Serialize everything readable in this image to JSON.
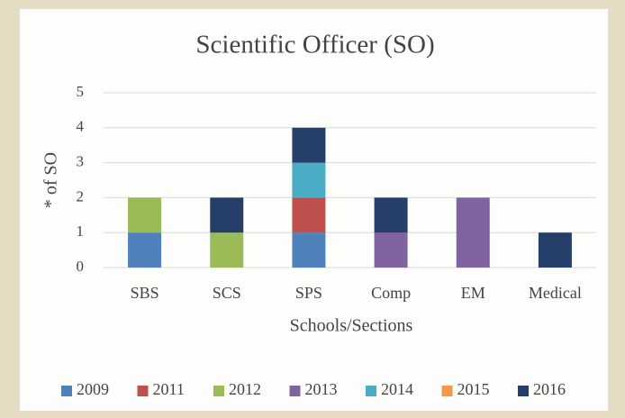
{
  "chart_data": {
    "type": "bar",
    "stacked": true,
    "title": "Scientific Officer (SO)",
    "x_label": "Schools/Sections",
    "y_label": "* of SO",
    "categories": [
      "SBS",
      "SCS",
      "SPS",
      "Comp",
      "EM",
      "Medical"
    ],
    "series": [
      {
        "name": "2009",
        "color": "#4f81bd",
        "values": [
          1,
          0,
          1,
          0,
          0,
          0
        ]
      },
      {
        "name": "2011",
        "color": "#c0504d",
        "values": [
          0,
          0,
          1,
          0,
          0,
          0
        ]
      },
      {
        "name": "2012",
        "color": "#9bbb59",
        "values": [
          1,
          1,
          0,
          0,
          0,
          0
        ]
      },
      {
        "name": "2013",
        "color": "#8064a2",
        "values": [
          0,
          0,
          0,
          1,
          2,
          0
        ]
      },
      {
        "name": "2014",
        "color": "#4bacc6",
        "values": [
          0,
          0,
          1,
          0,
          0,
          0
        ]
      },
      {
        "name": "2015",
        "color": "#f79646",
        "values": [
          0,
          0,
          0,
          0,
          0,
          0
        ]
      },
      {
        "name": "2016",
        "color": "#263f6a",
        "values": [
          0,
          1,
          1,
          1,
          0,
          1
        ]
      }
    ],
    "ylim": [
      0,
      5
    ],
    "yticks": [
      0,
      1,
      2,
      3,
      4,
      5
    ],
    "grid": true,
    "legend": "bottom"
  }
}
